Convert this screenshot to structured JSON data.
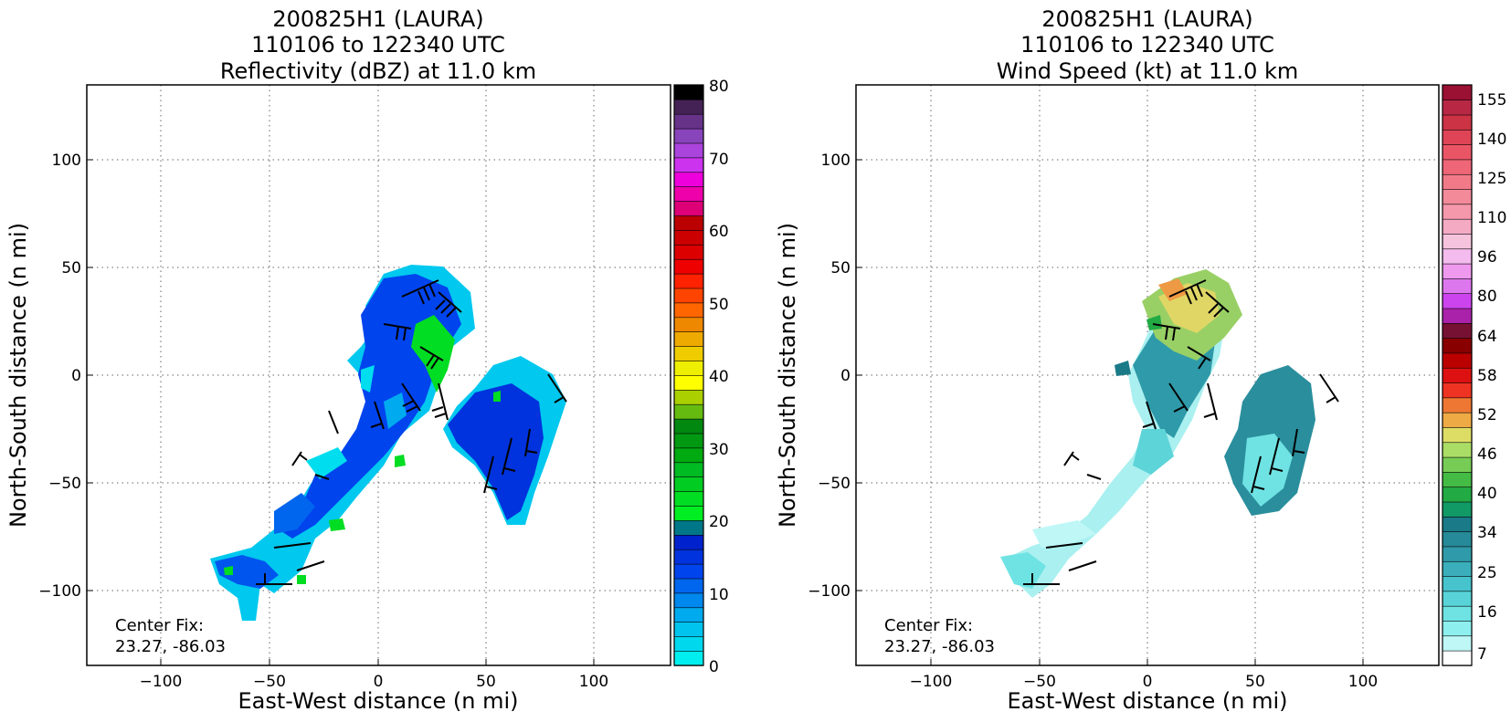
{
  "panels": [
    {
      "id": "reflectivity",
      "title_lines": [
        "200825H1 (LAURA)",
        "110106 to 122340 UTC",
        "Reflectivity (dBZ) at 11.0 km"
      ],
      "center_fix_label": "Center Fix:",
      "center_fix_value": "23.27, -86.03",
      "xlabel": "East-West distance (n mi)",
      "ylabel": "North-South distance (n mi)",
      "xticks": [
        "−100",
        "−50",
        "0",
        "50",
        "100"
      ],
      "yticks": [
        "100",
        "50",
        "0",
        "−50",
        "−100"
      ],
      "colorbar": {
        "labels": [
          "80",
          "70",
          "60",
          "50",
          "40",
          "30",
          "20",
          "10",
          "0"
        ],
        "colors_bottom_to_top": [
          "#00eeee",
          "#00d8ee",
          "#00c4ee",
          "#00aaee",
          "#0088ee",
          "#0066ee",
          "#0044ee",
          "#0033dd",
          "#0022cc",
          "#007788",
          "#00ee22",
          "#00dd22",
          "#00cc22",
          "#00bb22",
          "#00aa11",
          "#009911",
          "#008811",
          "#66bb11",
          "#aad000",
          "#ffff00",
          "#eeee00",
          "#eecc00",
          "#eeaa00",
          "#ee8800",
          "#ff6600",
          "#ff4400",
          "#ff2200",
          "#ee0000",
          "#dd0000",
          "#cc0000",
          "#bb0000",
          "#dd0077",
          "#ee00aa",
          "#ee00dd",
          "#cc33ee",
          "#aa44dd",
          "#8844bb",
          "#663388",
          "#442255",
          "#000000"
        ]
      }
    },
    {
      "id": "wind",
      "title_lines": [
        "200825H1 (LAURA)",
        "110106 to 122340 UTC",
        "Wind Speed (kt) at 11.0 km"
      ],
      "center_fix_label": "Center Fix:",
      "center_fix_value": "23.27, -86.03",
      "xlabel": "East-West distance (n mi)",
      "ylabel": "North-South distance (n mi)",
      "xticks": [
        "−100",
        "−50",
        "0",
        "50",
        "100"
      ],
      "yticks": [
        "100",
        "50",
        "0",
        "−50",
        "−100"
      ],
      "colorbar": {
        "labels": [
          "155",
          "140",
          "125",
          "110",
          "96",
          "80",
          "64",
          "58",
          "52",
          "46",
          "40",
          "34",
          "25",
          "16",
          "7"
        ],
        "colors_bottom_to_top": [
          "#ffffff",
          "#bff7f7",
          "#8eefef",
          "#6fe3e3",
          "#58d4d8",
          "#46c3cc",
          "#3aafbb",
          "#2f9aa9",
          "#268a98",
          "#1a7a88",
          "#119966",
          "#22aa44",
          "#44bb44",
          "#77cc55",
          "#aadd66",
          "#dddd66",
          "#eeaa44",
          "#ee7733",
          "#ee3322",
          "#dd1111",
          "#bb0000",
          "#880000",
          "#771133",
          "#aa22aa",
          "#cc44ee",
          "#dd77ee",
          "#ee99ee",
          "#f3bbee",
          "#f6c3dd",
          "#f5aac4",
          "#f598ac",
          "#f28a99",
          "#f17a88",
          "#ee6677",
          "#ea5566",
          "#de4455",
          "#cc3344",
          "#b82844",
          "#9a1133"
        ]
      }
    }
  ],
  "chart_data": [
    {
      "type": "heatmap",
      "variable": "Reflectivity (dBZ)",
      "altitude_km": 11.0,
      "xlim": [
        -135,
        135
      ],
      "ylim": [
        -135,
        135
      ],
      "grid": true,
      "xtick_values": [
        -100,
        -50,
        0,
        50,
        100
      ],
      "ytick_values": [
        100,
        50,
        0,
        -50,
        -100
      ],
      "colorbar_range": [
        0,
        80
      ],
      "colorbar_tick_values": [
        80,
        70,
        60,
        50,
        40,
        30,
        20,
        10,
        0
      ]
    },
    {
      "type": "heatmap",
      "variable": "Wind Speed (kt)",
      "altitude_km": 11.0,
      "xlim": [
        -135,
        135
      ],
      "ylim": [
        -135,
        135
      ],
      "grid": true,
      "xtick_values": [
        -100,
        -50,
        0,
        50,
        100
      ],
      "ytick_values": [
        100,
        50,
        0,
        -50,
        -100
      ],
      "colorbar_tick_values": [
        155,
        140,
        125,
        110,
        96,
        80,
        64,
        58,
        52,
        46,
        40,
        34,
        25,
        16,
        7
      ]
    }
  ]
}
